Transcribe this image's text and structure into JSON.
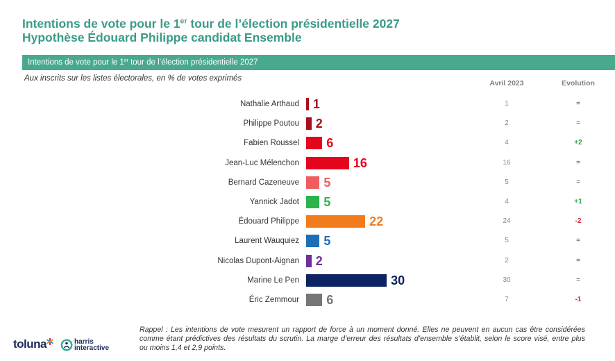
{
  "header": {
    "line1_pre": "Intentions de vote pour le 1",
    "line1_sup": "er",
    "line1_post": " tour de l’élection présidentielle 2027",
    "line2": "Hypothèse Édouard Philippe candidat Ensemble"
  },
  "chart_data": {
    "type": "bar",
    "orientation": "horizontal",
    "title": {
      "pre": "Intentions de vote pour le 1",
      "sup": "er",
      "post": " tour de l’élection présidentielle 2027"
    },
    "subtitle": "Aux inscrits sur les listes électorales, en % de votes exprimés",
    "categories": [
      "Nathalie Arthaud",
      "Philippe Poutou",
      "Fabien Roussel",
      "Jean-Luc Mélenchon",
      "Bernard Cazeneuve",
      "Yannick Jadot",
      "Édouard Philippe",
      "Laurent Wauquiez",
      "Nicolas Dupont-Aignan",
      "Marine Le Pen",
      "Éric Zemmour"
    ],
    "values": [
      1,
      2,
      6,
      16,
      5,
      5,
      22,
      5,
      2,
      30,
      6
    ],
    "colors": [
      "#a8111b",
      "#a8111b",
      "#e4051c",
      "#e4051c",
      "#f15c5e",
      "#2db34b",
      "#f27c1c",
      "#1e6eb5",
      "#6d2f9a",
      "#0e2361",
      "#767676"
    ],
    "xlim": [
      0,
      30
    ],
    "xlabel": "",
    "ylabel": "",
    "comparison": {
      "label": "Avril 2023",
      "values": [
        1,
        2,
        4,
        16,
        5,
        4,
        24,
        5,
        2,
        30,
        7
      ]
    },
    "evolution": {
      "label": "Evolution",
      "values": [
        "=",
        "=",
        "+2",
        "=",
        "=",
        "+1",
        "-2",
        "=",
        "=",
        "=",
        "-1"
      ]
    }
  },
  "footer": {
    "lines": [
      "Rappel : Les intentions de vote mesurent un rapport de force à un moment donné. Elles ne peuvent en aucun cas être considérées",
      "comme étant prédictives des résultats du scrutin. La marge d’erreur des résultats d’ensemble s’établit, selon le score visé, entre plus",
      "ou moins 1,4 et 2,9 points."
    ]
  },
  "logos": {
    "toluna": "toluna",
    "harris": "harris",
    "interactive": "interactive"
  },
  "colors": {
    "title": "#3b9b87",
    "banner": "#48a98f",
    "positive": "#2aa146",
    "negative": "#d7262c",
    "neutral": "#404040"
  }
}
